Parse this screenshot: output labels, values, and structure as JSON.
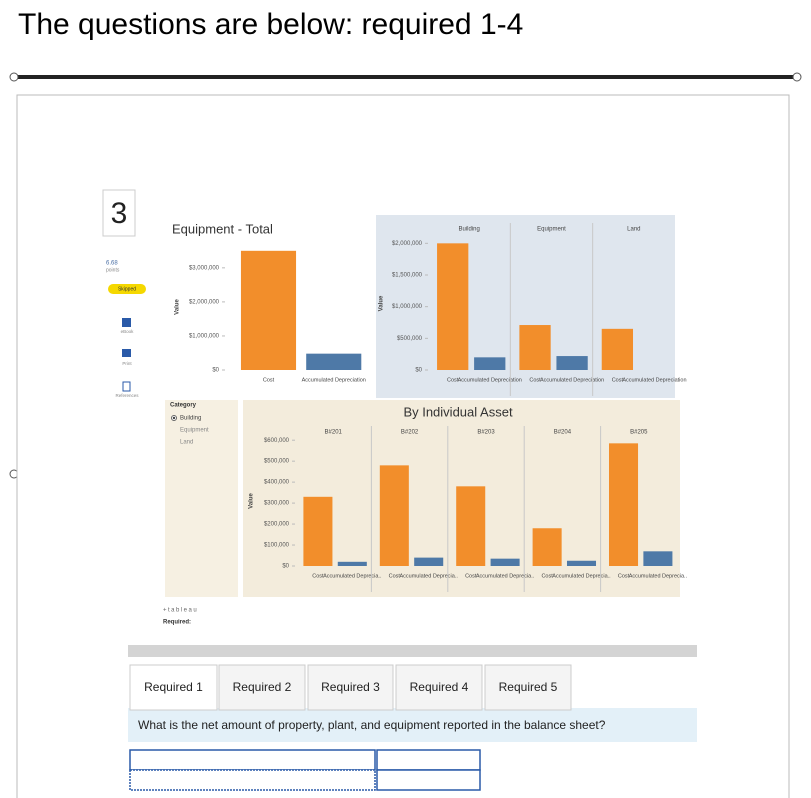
{
  "header": {
    "title": "The questions are below: required 1-4"
  },
  "question": {
    "number": "3",
    "points": "6.68",
    "points_label": "points",
    "status": "Skipped",
    "tools": [
      "eBook",
      "Print",
      "References"
    ]
  },
  "chart_data": [
    {
      "type": "bar",
      "title": "Equipment - Total",
      "y_label": "Value",
      "categories": [
        "Cost",
        "Accumulated Depreciation"
      ],
      "values": [
        3500000,
        480000
      ],
      "colors": [
        "#f28e2b",
        "#4e79a7"
      ],
      "ylim": [
        0,
        3700000
      ],
      "yticks": [
        {
          "value": 0,
          "label": "$0"
        },
        {
          "value": 1000000,
          "label": "$1,000,000"
        },
        {
          "value": 2000000,
          "label": "$2,000,000"
        },
        {
          "value": 3000000,
          "label": "$3,000,000"
        }
      ]
    },
    {
      "type": "bar",
      "y_label": "Value",
      "categories": [
        "Cost",
        "Accumulated Depreciation"
      ],
      "panels": [
        {
          "name": "Building",
          "values": [
            2000000,
            200000
          ]
        },
        {
          "name": "Equipment",
          "values": [
            710000,
            220000
          ]
        },
        {
          "name": "Land",
          "values": [
            650000,
            0
          ]
        }
      ],
      "colors": [
        "#f28e2b",
        "#4e79a7"
      ],
      "ylim": [
        0,
        2100000
      ],
      "yticks": [
        {
          "value": 0,
          "label": "$0"
        },
        {
          "value": 500000,
          "label": "$500,000"
        },
        {
          "value": 1000000,
          "label": "$1,000,000"
        },
        {
          "value": 1500000,
          "label": "$1,500,000"
        },
        {
          "value": 2000000,
          "label": "$2,000,000"
        }
      ]
    },
    {
      "type": "bar",
      "title": "By Individual Asset",
      "y_label": "Value",
      "categories": [
        "Cost",
        "Accumulated Deprecia.."
      ],
      "panels": [
        {
          "name": "B#201",
          "values": [
            330000,
            20000
          ]
        },
        {
          "name": "B#202",
          "values": [
            480000,
            40000
          ]
        },
        {
          "name": "B#203",
          "values": [
            380000,
            35000
          ]
        },
        {
          "name": "B#204",
          "values": [
            180000,
            25000
          ]
        },
        {
          "name": "B#205",
          "values": [
            585000,
            70000
          ]
        }
      ],
      "colors": [
        "#f28e2b",
        "#4e79a7"
      ],
      "ylim": [
        0,
        620000
      ],
      "yticks": [
        {
          "value": 0,
          "label": "$0"
        },
        {
          "value": 100000,
          "label": "$100,000"
        },
        {
          "value": 200000,
          "label": "$200,000"
        },
        {
          "value": 300000,
          "label": "$300,000"
        },
        {
          "value": 400000,
          "label": "$400,000"
        },
        {
          "value": 500000,
          "label": "$500,000"
        },
        {
          "value": 600000,
          "label": "$600,000"
        }
      ]
    }
  ],
  "filter": {
    "title": "Category",
    "options": [
      "Building",
      "Equipment",
      "Land"
    ]
  },
  "footer": {
    "brand": "+tableau",
    "label": "Required:"
  },
  "tabs": [
    "Required 1",
    "Required 2",
    "Required 3",
    "Required 4",
    "Required 5"
  ],
  "prompt": "What is the net amount of property, plant, and equipment reported in the balance sheet?"
}
